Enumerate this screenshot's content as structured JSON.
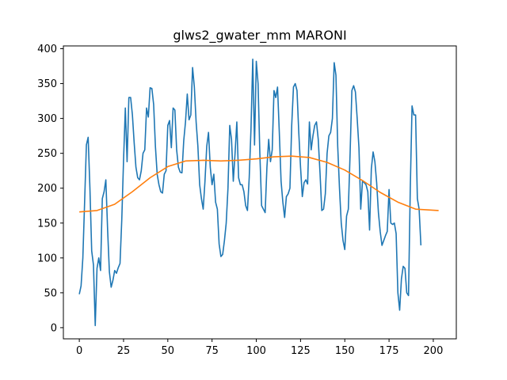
{
  "chart_data": {
    "type": "line",
    "title": "glws2_gwater_mm MARONI",
    "xlabel": "",
    "ylabel": "",
    "xlim": [
      -9,
      213
    ],
    "ylim": [
      -16,
      404
    ],
    "x_ticks": [
      0,
      25,
      50,
      75,
      100,
      125,
      150,
      175,
      200
    ],
    "y_ticks": [
      0,
      50,
      100,
      150,
      200,
      250,
      300,
      350,
      400
    ],
    "grid": false,
    "legend": "none",
    "series": [
      {
        "color": "#1f77b4",
        "x_start": 0,
        "x_step": 1,
        "values": [
          48,
          60,
          100,
          180,
          262,
          273,
          200,
          110,
          90,
          3,
          85,
          100,
          82,
          185,
          195,
          212,
          140,
          80,
          58,
          68,
          82,
          78,
          86,
          92,
          155,
          240,
          315,
          238,
          330,
          330,
          305,
          265,
          230,
          215,
          212,
          225,
          250,
          255,
          315,
          302,
          344,
          343,
          320,
          260,
          220,
          205,
          195,
          193,
          220,
          225,
          290,
          297,
          258,
          315,
          312,
          255,
          230,
          223,
          222,
          268,
          295,
          335,
          298,
          305,
          373,
          345,
          295,
          260,
          205,
          185,
          170,
          210,
          260,
          280,
          230,
          205,
          220,
          180,
          170,
          120,
          102,
          105,
          125,
          150,
          200,
          290,
          270,
          210,
          250,
          295,
          215,
          205,
          205,
          195,
          175,
          168,
          215,
          285,
          385,
          262,
          382,
          350,
          250,
          175,
          170,
          165,
          230,
          270,
          238,
          255,
          340,
          330,
          345,
          280,
          210,
          180,
          158,
          188,
          192,
          200,
          290,
          345,
          350,
          340,
          280,
          230,
          188,
          208,
          212,
          206,
          295,
          255,
          275,
          290,
          295,
          270,
          222,
          168,
          170,
          192,
          250,
          275,
          280,
          300,
          380,
          362,
          260,
          200,
          150,
          125,
          112,
          160,
          170,
          250,
          340,
          347,
          338,
          300,
          258,
          170,
          210,
          208,
          205,
          195,
          140,
          228,
          252,
          238,
          208,
          165,
          138,
          118,
          125,
          132,
          138,
          198,
          150,
          148,
          150,
          135,
          50,
          25,
          70,
          88,
          85,
          50,
          46,
          200,
          318,
          305,
          305,
          185,
          170,
          118
        ]
      },
      {
        "color": "#ff7f0e",
        "x": [
          0,
          10,
          20,
          30,
          40,
          50,
          60,
          70,
          80,
          90,
          100,
          110,
          120,
          130,
          140,
          150,
          160,
          170,
          180,
          190,
          203
        ],
        "values": [
          166,
          168,
          177,
          195,
          215,
          231,
          239,
          240,
          239,
          240,
          242,
          245,
          246,
          244,
          237,
          226,
          211,
          194,
          180,
          170,
          168
        ]
      }
    ]
  }
}
